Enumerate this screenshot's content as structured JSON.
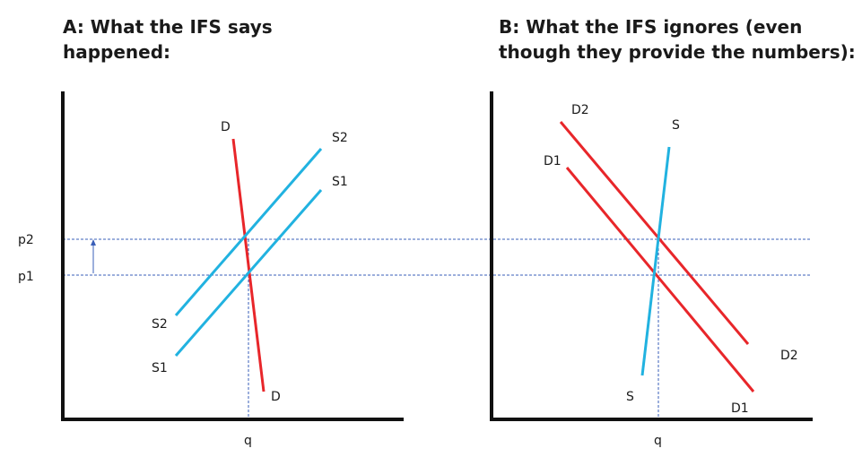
{
  "panel_a": {
    "title_line1": "A:  What the IFS says",
    "title_line2": "happened:",
    "labels": {
      "d_top": "D",
      "d_bottom": "D",
      "s2_top": "S2",
      "s1_top": "S1",
      "s2_bottom": "S2",
      "s1_bottom": "S1",
      "x_axis": "q"
    }
  },
  "panel_b": {
    "title_line1": "B:  What the IFS ignores (even",
    "title_line2": "though they provide the numbers):",
    "labels": {
      "d2_top": "D2",
      "d1_top": "D1",
      "s_top": "S",
      "d2_bottom": "D2",
      "d1_bottom": "D1",
      "s_bottom": "S",
      "x_axis": "q"
    }
  },
  "price_labels": {
    "p2": "p2",
    "p1": "p1"
  },
  "colors": {
    "demand": "#e8262a",
    "supply": "#21b2e0",
    "guide": "#3a5fb8",
    "axis": "#111111"
  }
}
